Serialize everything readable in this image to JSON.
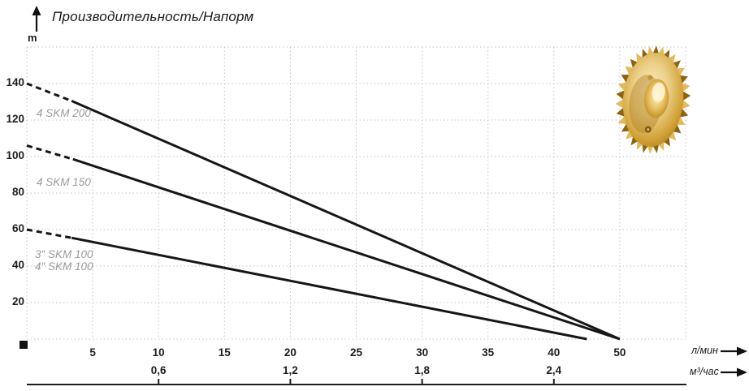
{
  "title": "Производительность/Напорм",
  "y_axis": {
    "unit": "m",
    "ticks": [
      "140",
      "120",
      "100",
      "80",
      "60",
      "40",
      "20"
    ]
  },
  "x_axis": {
    "unit": "л/мин",
    "ticks": [
      "5",
      "10",
      "15",
      "20",
      "25",
      "30",
      "35",
      "40",
      "50"
    ]
  },
  "x_axis2": {
    "unit": "м³/час",
    "ticks": [
      "0,6",
      "1,2",
      "1,8",
      "2,4"
    ]
  },
  "curve_labels": {
    "skm200": "4 SKM 200",
    "skm150": "4 SKM 150",
    "skm100_3": "3″ SKM 100",
    "skm100_4": "4″ SKM 100"
  },
  "icons": {
    "impeller": "brass-pump-impeller-photo",
    "y_arrow": "up-arrow",
    "x_arrow": "right-arrow",
    "origin_marker": "black-square"
  },
  "colors": {
    "curve": "#161616",
    "grid": "#c3c3c3",
    "text": "#1d1d1d",
    "muted_label": "#9b9b9b",
    "brass_light": "#f6e7b4",
    "brass_mid": "#d9ab45",
    "brass_dark": "#8f6410"
  },
  "chart_data": {
    "type": "line",
    "title": "Производительность/Напорм",
    "ylabel": "m",
    "xlabel": "л/мин",
    "xlabel_secondary": "м³/час",
    "ylim": [
      0,
      160
    ],
    "grid": true,
    "x_gridline_labels": [
      "5",
      "10",
      "15",
      "20",
      "25",
      "30",
      "35",
      "40",
      "50"
    ],
    "x_axis_note": "label 50 sits one 5-unit gridline after 40 (45 skipped)",
    "secondary_ticks": [
      {
        "label": "0,6",
        "at_l_min": 10
      },
      {
        "label": "1,2",
        "at_l_min": 20
      },
      {
        "label": "1,8",
        "at_l_min": 30
      },
      {
        "label": "2,4",
        "at_l_min": 40
      }
    ],
    "series": [
      {
        "name": "4 SKM 200",
        "points": [
          [
            0,
            140
          ],
          [
            50,
            0
          ]
        ],
        "dashed_until": 3.4
      },
      {
        "name": "4 SKM 150",
        "points": [
          [
            0,
            106
          ],
          [
            50,
            0
          ]
        ],
        "dashed_until": 3.5
      },
      {
        "name": "3″/4″ SKM 100",
        "points": [
          [
            0,
            60
          ],
          [
            45,
            0
          ]
        ],
        "dashed_until": 3.4
      }
    ],
    "legend_position": "inline-left"
  }
}
